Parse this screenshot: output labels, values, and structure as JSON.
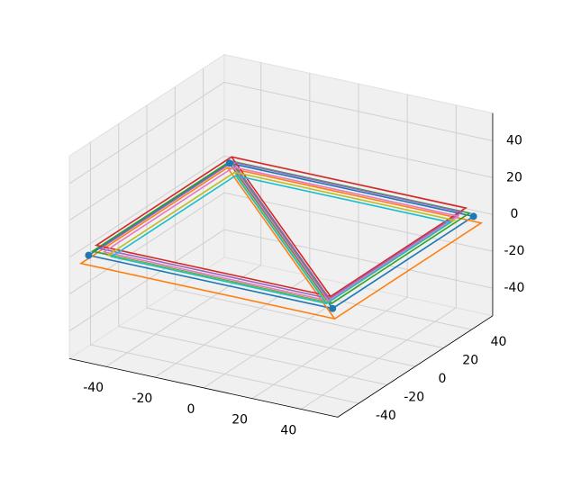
{
  "chart_data": {
    "type": "line3d",
    "xlim": [
      -55,
      55
    ],
    "ylim": [
      -55,
      55
    ],
    "zlim": [
      -55,
      55
    ],
    "xticks": [
      -40,
      -20,
      0,
      20,
      40
    ],
    "yticks": [
      -40,
      -20,
      0,
      20,
      40
    ],
    "zticks": [
      -40,
      -20,
      0,
      20,
      40
    ],
    "grid": true,
    "series": [
      {
        "color": "#1f77b4",
        "x": [
          50,
          -50,
          -50,
          50,
          50,
          -50
        ],
        "y": [
          -50,
          -50,
          50,
          50,
          -50,
          50
        ],
        "z": [
          0,
          0,
          0,
          0,
          0,
          0
        ]
      },
      {
        "color": "#ff7f0e",
        "x": [
          52,
          -52,
          -52,
          52,
          52,
          -52
        ],
        "y": [
          -52,
          -52,
          52,
          52,
          -52,
          52
        ],
        "z": [
          -4,
          -4,
          -4,
          -4,
          -4,
          -4
        ]
      },
      {
        "color": "#2ca02c",
        "x": [
          49,
          -49,
          -49,
          49,
          49,
          -49
        ],
        "y": [
          -49,
          -49,
          49,
          49,
          -49,
          49
        ],
        "z": [
          2,
          2,
          2,
          2,
          2,
          2
        ]
      },
      {
        "color": "#d62728",
        "x": [
          48,
          -48,
          -48,
          48,
          48,
          -48
        ],
        "y": [
          -48,
          -48,
          48,
          48,
          -48,
          48
        ],
        "z": [
          5,
          5,
          5,
          5,
          5,
          5
        ]
      },
      {
        "color": "#9467bd",
        "x": [
          47,
          -47,
          -47,
          47,
          47,
          -47
        ],
        "y": [
          -47,
          -47,
          47,
          47,
          -47,
          47
        ],
        "z": [
          3,
          3,
          3,
          3,
          3,
          3
        ]
      },
      {
        "color": "#e377c2",
        "x": [
          46,
          -46,
          -46,
          46,
          46,
          -46
        ],
        "y": [
          -46,
          -46,
          46,
          46,
          -46,
          46
        ],
        "z": [
          1,
          1,
          1,
          1,
          1,
          1
        ]
      },
      {
        "color": "#bcbd22",
        "x": [
          45,
          -45,
          -45,
          45,
          45,
          -45
        ],
        "y": [
          -45,
          -45,
          45,
          45,
          -45,
          45
        ],
        "z": [
          -1,
          -1,
          -1,
          -1,
          -1,
          -1
        ]
      },
      {
        "color": "#17becf",
        "x": [
          44,
          -44,
          -44,
          44,
          44,
          -44
        ],
        "y": [
          -44,
          -44,
          44,
          44,
          -44,
          44
        ],
        "z": [
          -2,
          -2,
          -2,
          -2,
          -2,
          -2
        ]
      }
    ],
    "points": {
      "color": "#1f77b4",
      "x": [
        50,
        -50,
        -50,
        50
      ],
      "y": [
        -50,
        -50,
        50,
        50
      ],
      "z": [
        0,
        0,
        0,
        0
      ]
    }
  }
}
